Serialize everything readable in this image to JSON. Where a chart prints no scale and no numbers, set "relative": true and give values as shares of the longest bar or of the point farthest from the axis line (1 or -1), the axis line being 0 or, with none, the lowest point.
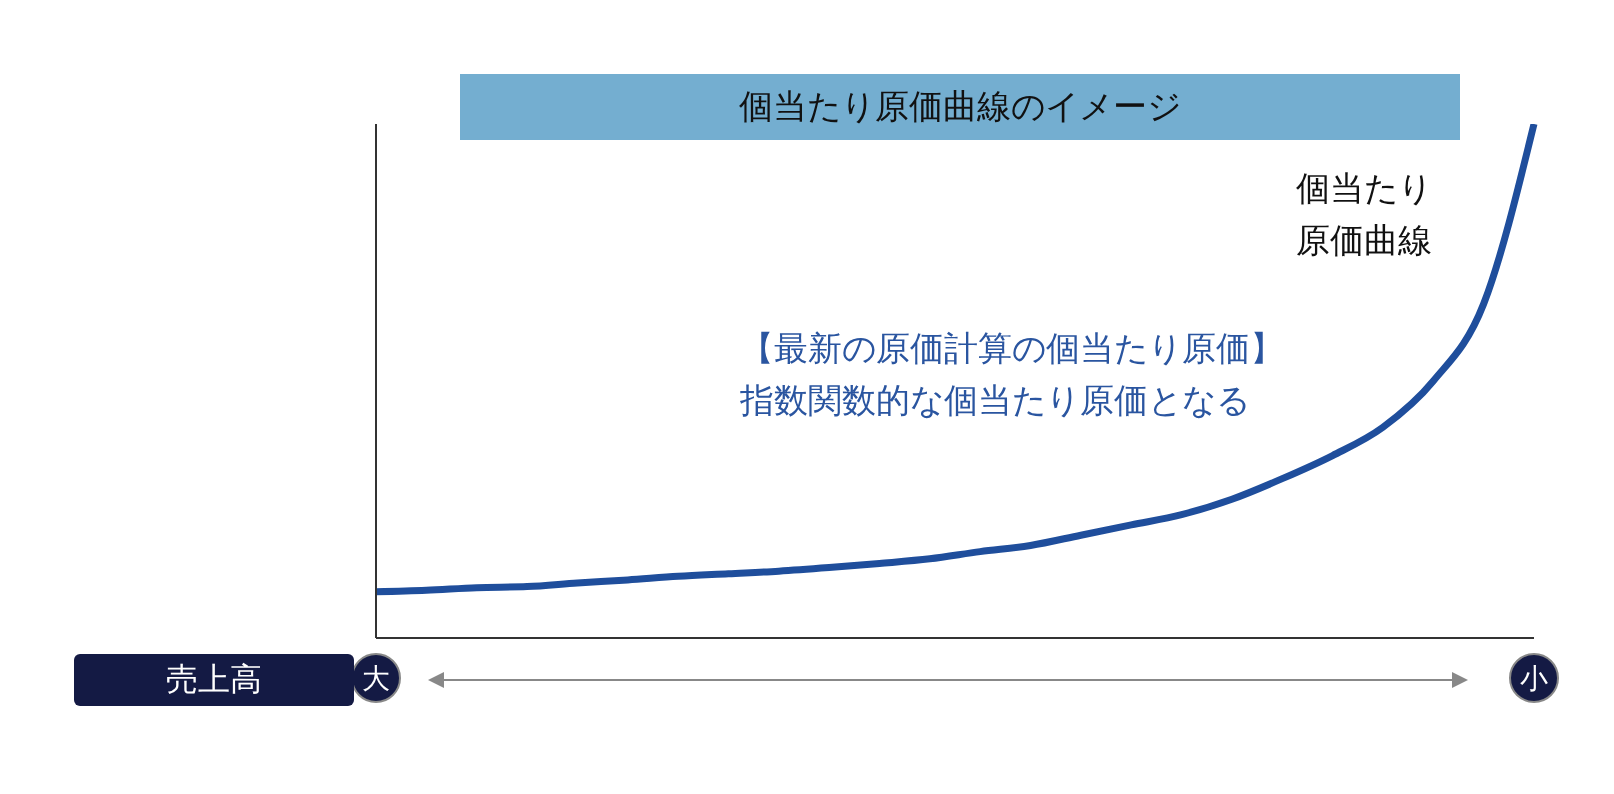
{
  "chart_data": {
    "type": "line",
    "title": "個当たり原価曲線のイメージ",
    "xlabel": "売上高",
    "relative": true,
    "grid": false,
    "marker": "none",
    "line_style": "solid",
    "categories": [
      "大",
      null,
      null,
      null,
      null,
      null,
      null,
      null,
      null,
      null,
      null,
      null,
      null,
      null,
      null,
      null,
      null,
      null,
      null,
      null,
      null,
      null,
      null,
      "小"
    ],
    "series": [
      {
        "name": "個当たり原価曲線",
        "color": "#1f4e9c",
        "values": [
          0.09,
          0.093,
          0.098,
          0.1,
          0.107,
          0.113,
          0.12,
          0.125,
          0.13,
          0.137,
          0.145,
          0.154,
          0.168,
          0.18,
          0.2,
          0.22,
          0.24,
          0.27,
          0.31,
          0.355,
          0.41,
          0.5,
          0.65,
          1
        ]
      }
    ],
    "annotations": [
      "【最新の原価計算の個当たり原価】",
      "指数関数的な個当たり原価となる"
    ]
  }
}
